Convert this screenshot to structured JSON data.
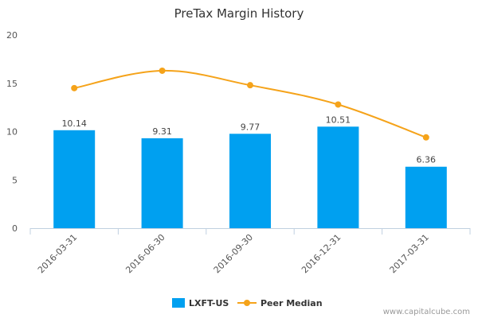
{
  "chart_data": {
    "type": "bar",
    "title": "PreTax Margin History",
    "categories": [
      "2016-03-31",
      "2016-06-30",
      "2016-09-30",
      "2016-12-31",
      "2017-03-31"
    ],
    "ylim": [
      0,
      20
    ],
    "yticks": [
      "0",
      "5",
      "10",
      "15",
      "20"
    ],
    "grid": false,
    "legend_position": "bottom",
    "series": [
      {
        "name": "LXFT-US",
        "kind": "bar",
        "color": "#00a0f0",
        "values": [
          10.14,
          9.31,
          9.77,
          10.51,
          6.36
        ],
        "labels": [
          "10.14",
          "9.31",
          "9.77",
          "10.51",
          "6.36"
        ]
      },
      {
        "name": "Peer Median",
        "kind": "line",
        "color": "#f5a31a",
        "values": [
          14.5,
          16.3,
          14.8,
          12.8,
          9.4
        ]
      }
    ]
  },
  "credit": "www.capitalcube.com"
}
